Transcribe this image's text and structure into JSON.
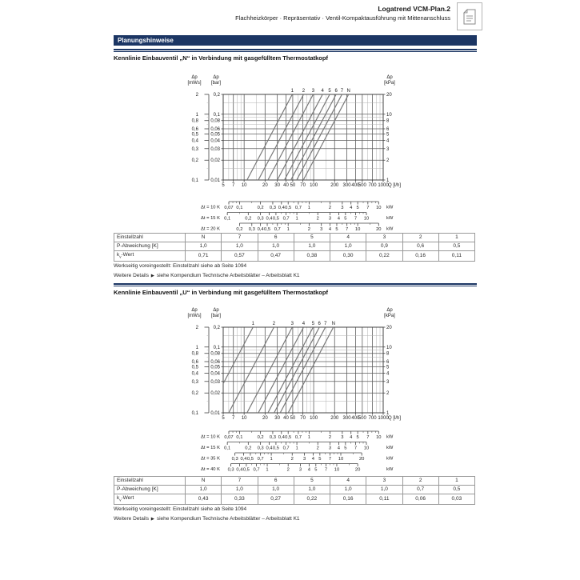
{
  "header": {
    "title": "Logatrend VCM-Plan.2",
    "subtitle": "Flachheizkörper · Repräsentativ · Ventil-Kompaktausführung mit Mittenanschluss",
    "doc_icon": "worksheet-page-icon"
  },
  "banner": {
    "label": "Planungshinweise"
  },
  "colors": {
    "navy": "#1c3664",
    "grid_minor": "#b3b3b3",
    "grid_major": "#5e5e5e",
    "plot_border": "#444444",
    "curve": "#787878",
    "table_border": "#9a9a9a",
    "text": "#1a1a1a"
  },
  "notes": {
    "line1": "Werkseitig voreingestellt: Einstellzahl siehe ab Seite 1094",
    "line2_prefix": "Weitere Details",
    "line2_arrow": "▶",
    "line2_text": "siehe Kompendium Technische Arbeitsblätter – Arbeitsblatt K1"
  },
  "sections": [
    {
      "title": "Kennlinie Einbauventil „N“ in Verbindung mit gasgefülltem Thermostatkopf",
      "table": {
        "rows": [
          {
            "label": "Einstellzahl",
            "values": [
              "N",
              "7",
              "6",
              "5",
              "4",
              "3",
              "2",
              "1"
            ]
          },
          {
            "label": "P-Abweichung [K]",
            "values": [
              "1,0",
              "1,0",
              "1,0",
              "1,0",
              "1,0",
              "0,9",
              "0,6",
              "0,5"
            ]
          },
          {
            "label": "kv-Wert",
            "values": [
              "0,71",
              "0,57",
              "0,47",
              "0,38",
              "0,30",
              "0,22",
              "0,16",
              "0,11"
            ]
          }
        ]
      }
    },
    {
      "title": "Kennlinie Einbauventil „U“ in Verbindung mit gasgefülltem Thermostatkopf",
      "table": {
        "rows": [
          {
            "label": "Einstellzahl",
            "values": [
              "N",
              "7",
              "6",
              "5",
              "4",
              "3",
              "2",
              "1"
            ]
          },
          {
            "label": "P-Abweichung [K]",
            "values": [
              "1,0",
              "1,0",
              "1,0",
              "1,0",
              "1,0",
              "1,0",
              "0,7",
              "0,5"
            ]
          },
          {
            "label": "kv-Wert",
            "values": [
              "0,43",
              "0,33",
              "0,27",
              "0,22",
              "0,16",
              "0,11",
              "0,06",
              "0,03"
            ]
          }
        ]
      }
    }
  ],
  "chart_data": [
    {
      "type": "line",
      "valve": "N",
      "title": "Kennlinie Einbauventil „N“ in Verbindung mit gasgefülltem Thermostatkopf",
      "x": {
        "label": "Q [l/h]",
        "scale": "log",
        "min": 5,
        "max": 1000,
        "ticks": [
          5,
          7,
          10,
          20,
          30,
          40,
          50,
          70,
          100,
          200,
          300,
          400,
          500,
          700,
          1000
        ]
      },
      "y_bar": {
        "label": "Δp [bar]",
        "scale": "log",
        "min": 0.01,
        "max": 0.2,
        "ticks": [
          0.2,
          0.1,
          0.08,
          0.06,
          0.05,
          0.04,
          0.03,
          0.02,
          0.01
        ]
      },
      "y_mws": {
        "label": "Δp [mWs]",
        "ticks": [
          2,
          1,
          0.8,
          0.6,
          0.5,
          0.4,
          0.3,
          0.2,
          0.1
        ]
      },
      "y_kpa": {
        "label": "Δp [kPa]",
        "ticks": [
          20,
          10,
          8,
          6,
          5,
          4,
          3,
          2,
          1
        ]
      },
      "series": [
        {
          "name": "1",
          "kv": 0.11
        },
        {
          "name": "2",
          "kv": 0.16
        },
        {
          "name": "3",
          "kv": 0.22
        },
        {
          "name": "4",
          "kv": 0.3
        },
        {
          "name": "5",
          "kv": 0.38
        },
        {
          "name": "6",
          "kv": 0.47
        },
        {
          "name": "7",
          "kv": 0.57
        },
        {
          "name": "N",
          "kv": 0.71
        }
      ],
      "curve_model": "dp_bar = (Q_l_h / (1000 * kv))^2",
      "power_scales": [
        {
          "label": "Δt = 10 K",
          "dt": 10,
          "unit": "kW",
          "ticks": [
            0.07,
            0.1,
            0.2,
            0.3,
            0.4,
            0.5,
            0.7,
            1,
            2,
            3,
            4,
            5,
            7,
            10
          ]
        },
        {
          "label": "Δt = 15 K",
          "dt": 15,
          "unit": "kW",
          "ticks": [
            0.1,
            0.2,
            0.3,
            0.4,
            0.5,
            0.7,
            1,
            2,
            3,
            4,
            5,
            7,
            10
          ]
        },
        {
          "label": "Δt = 20 K",
          "dt": 20,
          "unit": "kW",
          "ticks": [
            0.2,
            0.3,
            0.4,
            0.5,
            0.7,
            1,
            2,
            3,
            4,
            5,
            7,
            10,
            20
          ]
        }
      ]
    },
    {
      "type": "line",
      "valve": "U",
      "title": "Kennlinie Einbauventil „U“ in Verbindung mit gasgefülltem Thermostatkopf",
      "x": {
        "label": "Q [l/h]",
        "scale": "log",
        "min": 5,
        "max": 1000,
        "ticks": [
          5,
          7,
          10,
          20,
          30,
          40,
          50,
          70,
          100,
          200,
          300,
          400,
          500,
          700,
          1000
        ]
      },
      "y_bar": {
        "label": "Δp [bar]",
        "scale": "log",
        "min": 0.01,
        "max": 0.2,
        "ticks": [
          0.2,
          0.1,
          0.08,
          0.06,
          0.05,
          0.04,
          0.03,
          0.02,
          0.01
        ]
      },
      "y_mws": {
        "label": "Δp [mWs]",
        "ticks": [
          2,
          1,
          0.8,
          0.6,
          0.5,
          0.4,
          0.3,
          0.2,
          0.1
        ]
      },
      "y_kpa": {
        "label": "Δp [kPa]",
        "ticks": [
          20,
          10,
          8,
          6,
          5,
          4,
          3,
          2,
          1
        ]
      },
      "series": [
        {
          "name": "1",
          "kv": 0.03
        },
        {
          "name": "2",
          "kv": 0.06
        },
        {
          "name": "3",
          "kv": 0.11
        },
        {
          "name": "4",
          "kv": 0.16
        },
        {
          "name": "5",
          "kv": 0.22
        },
        {
          "name": "6",
          "kv": 0.27
        },
        {
          "name": "7",
          "kv": 0.33
        },
        {
          "name": "N",
          "kv": 0.43
        }
      ],
      "curve_model": "dp_bar = (Q_l_h / (1000 * kv))^2",
      "power_scales": [
        {
          "label": "Δt = 10 K",
          "dt": 10,
          "unit": "kW",
          "ticks": [
            0.07,
            0.1,
            0.2,
            0.3,
            0.4,
            0.5,
            0.7,
            1,
            2,
            3,
            4,
            5,
            7,
            10
          ]
        },
        {
          "label": "Δt = 15 K",
          "dt": 15,
          "unit": "kW",
          "ticks": [
            0.1,
            0.2,
            0.3,
            0.4,
            0.5,
            0.7,
            1,
            2,
            3,
            4,
            5,
            7,
            10
          ]
        },
        {
          "label": "Δt = 35 K",
          "dt": 35,
          "unit": "kW",
          "ticks": [
            0.3,
            0.4,
            0.5,
            0.7,
            1,
            2,
            3,
            4,
            5,
            7,
            10,
            20
          ]
        },
        {
          "label": "Δt = 40 K",
          "dt": 40,
          "unit": "kW",
          "ticks": [
            0.3,
            0.4,
            0.5,
            0.7,
            1,
            2,
            3,
            4,
            5,
            7,
            10,
            20
          ]
        }
      ]
    }
  ]
}
